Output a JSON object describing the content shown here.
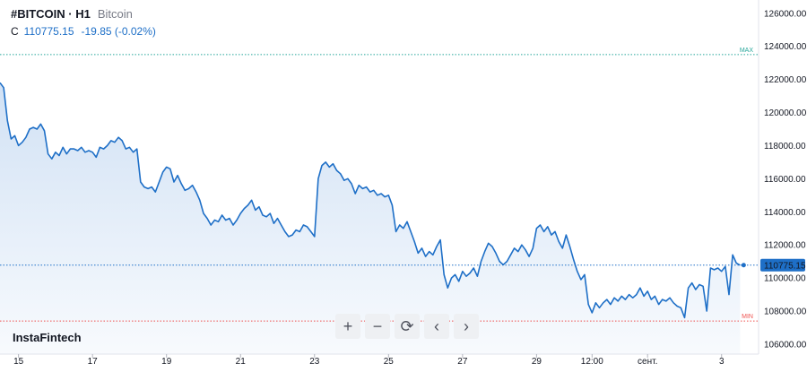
{
  "header": {
    "symbol": "#BITCOIN · H1",
    "name": "Bitcoin",
    "close_label": "C",
    "close_value": "110775.15",
    "change": "-19.85 (-0.02%)"
  },
  "logo": "InstaFintech",
  "controls": [
    {
      "name": "zoom-in-button",
      "icon": "plus-icon",
      "glyph": "+"
    },
    {
      "name": "zoom-out-button",
      "icon": "minus-icon",
      "glyph": "−"
    },
    {
      "name": "reset-button",
      "icon": "reset-icon",
      "glyph": "⟳"
    },
    {
      "name": "scroll-left-button",
      "icon": "chevron-left-icon",
      "glyph": "‹"
    },
    {
      "name": "scroll-right-button",
      "icon": "chevron-right-icon",
      "glyph": "›"
    }
  ],
  "colors": {
    "line": "#1e6fc7",
    "area_top": "#cfe0f4",
    "max_line": "#26a69a",
    "min_line": "#ef5350",
    "current_label_bg": "#1e6fc7"
  },
  "chart_data": {
    "type": "area",
    "y_ticks": [
      "126000.00",
      "124000.00",
      "122000.00",
      "120000.00",
      "118000.00",
      "116000.00",
      "114000.00",
      "112000.00",
      "110000.00",
      "108000.00",
      "106000.00"
    ],
    "ylim": [
      105400,
      126800
    ],
    "x_ticks": [
      {
        "label": "15",
        "t": 0.5
      },
      {
        "label": "17",
        "t": 2.5
      },
      {
        "label": "19",
        "t": 4.5
      },
      {
        "label": "21",
        "t": 6.5
      },
      {
        "label": "23",
        "t": 8.5
      },
      {
        "label": "25",
        "t": 10.5
      },
      {
        "label": "27",
        "t": 12.5
      },
      {
        "label": "29",
        "t": 14.5
      },
      {
        "label": "12:00",
        "t": 16.0
      },
      {
        "label": "сент.",
        "t": 17.5
      },
      {
        "label": "3",
        "t": 19.5
      }
    ],
    "xlim": [
      0,
      20.5
    ],
    "max_marker": {
      "label": "MAX",
      "value": 123500
    },
    "min_marker": {
      "label": "MIN",
      "value": 107400
    },
    "current": {
      "label": "110775.15",
      "value": 110775.15
    },
    "series": [
      {
        "values": [
          [
            0,
            121800
          ],
          [
            0.1,
            121500
          ],
          [
            0.2,
            119500
          ],
          [
            0.3,
            118400
          ],
          [
            0.4,
            118600
          ],
          [
            0.5,
            118000
          ],
          [
            0.6,
            118200
          ],
          [
            0.7,
            118500
          ],
          [
            0.8,
            119000
          ],
          [
            0.9,
            119100
          ],
          [
            1.0,
            119000
          ],
          [
            1.1,
            119300
          ],
          [
            1.2,
            118900
          ],
          [
            1.3,
            117500
          ],
          [
            1.4,
            117200
          ],
          [
            1.5,
            117600
          ],
          [
            1.6,
            117400
          ],
          [
            1.7,
            117900
          ],
          [
            1.8,
            117500
          ],
          [
            1.9,
            117800
          ],
          [
            2.0,
            117800
          ],
          [
            2.1,
            117700
          ],
          [
            2.2,
            117900
          ],
          [
            2.3,
            117600
          ],
          [
            2.4,
            117700
          ],
          [
            2.5,
            117600
          ],
          [
            2.6,
            117300
          ],
          [
            2.7,
            117900
          ],
          [
            2.8,
            117800
          ],
          [
            2.9,
            118000
          ],
          [
            3.0,
            118300
          ],
          [
            3.1,
            118200
          ],
          [
            3.2,
            118500
          ],
          [
            3.3,
            118300
          ],
          [
            3.4,
            117800
          ],
          [
            3.5,
            117900
          ],
          [
            3.6,
            117600
          ],
          [
            3.7,
            117800
          ],
          [
            3.8,
            115800
          ],
          [
            3.9,
            115500
          ],
          [
            4.0,
            115400
          ],
          [
            4.1,
            115500
          ],
          [
            4.2,
            115200
          ],
          [
            4.3,
            115800
          ],
          [
            4.4,
            116400
          ],
          [
            4.5,
            116700
          ],
          [
            4.6,
            116600
          ],
          [
            4.7,
            115800
          ],
          [
            4.8,
            116200
          ],
          [
            4.9,
            115700
          ],
          [
            5.0,
            115300
          ],
          [
            5.1,
            115400
          ],
          [
            5.2,
            115600
          ],
          [
            5.3,
            115200
          ],
          [
            5.4,
            114700
          ],
          [
            5.5,
            113900
          ],
          [
            5.6,
            113600
          ],
          [
            5.7,
            113200
          ],
          [
            5.8,
            113500
          ],
          [
            5.9,
            113400
          ],
          [
            6.0,
            113800
          ],
          [
            6.1,
            113500
          ],
          [
            6.2,
            113600
          ],
          [
            6.3,
            113200
          ],
          [
            6.4,
            113500
          ],
          [
            6.5,
            113900
          ],
          [
            6.6,
            114200
          ],
          [
            6.7,
            114400
          ],
          [
            6.8,
            114700
          ],
          [
            6.9,
            114100
          ],
          [
            7.0,
            114300
          ],
          [
            7.1,
            113800
          ],
          [
            7.2,
            113700
          ],
          [
            7.3,
            113900
          ],
          [
            7.4,
            113300
          ],
          [
            7.5,
            113600
          ],
          [
            7.6,
            113200
          ],
          [
            7.7,
            112800
          ],
          [
            7.8,
            112500
          ],
          [
            7.9,
            112600
          ],
          [
            8.0,
            112900
          ],
          [
            8.1,
            112800
          ],
          [
            8.2,
            113200
          ],
          [
            8.3,
            113100
          ],
          [
            8.4,
            112800
          ],
          [
            8.5,
            112500
          ],
          [
            8.6,
            116000
          ],
          [
            8.7,
            116800
          ],
          [
            8.8,
            117000
          ],
          [
            8.9,
            116700
          ],
          [
            9.0,
            116900
          ],
          [
            9.1,
            116500
          ],
          [
            9.2,
            116300
          ],
          [
            9.3,
            115900
          ],
          [
            9.4,
            116000
          ],
          [
            9.5,
            115700
          ],
          [
            9.6,
            115100
          ],
          [
            9.7,
            115600
          ],
          [
            9.8,
            115400
          ],
          [
            9.9,
            115500
          ],
          [
            10.0,
            115200
          ],
          [
            10.1,
            115300
          ],
          [
            10.2,
            115000
          ],
          [
            10.3,
            115100
          ],
          [
            10.4,
            114900
          ],
          [
            10.5,
            115000
          ],
          [
            10.6,
            114400
          ],
          [
            10.7,
            112800
          ],
          [
            10.8,
            113200
          ],
          [
            10.9,
            113000
          ],
          [
            11.0,
            113400
          ],
          [
            11.1,
            112800
          ],
          [
            11.2,
            112200
          ],
          [
            11.3,
            111500
          ],
          [
            11.4,
            111800
          ],
          [
            11.5,
            111300
          ],
          [
            11.6,
            111600
          ],
          [
            11.7,
            111400
          ],
          [
            11.8,
            111900
          ],
          [
            11.9,
            112300
          ],
          [
            12.0,
            110200
          ],
          [
            12.1,
            109400
          ],
          [
            12.2,
            110000
          ],
          [
            12.3,
            110200
          ],
          [
            12.4,
            109800
          ],
          [
            12.5,
            110400
          ],
          [
            12.6,
            110100
          ],
          [
            12.7,
            110300
          ],
          [
            12.8,
            110600
          ],
          [
            12.9,
            110100
          ],
          [
            13.0,
            111000
          ],
          [
            13.1,
            111600
          ],
          [
            13.2,
            112100
          ],
          [
            13.3,
            111900
          ],
          [
            13.4,
            111500
          ],
          [
            13.5,
            111000
          ],
          [
            13.6,
            110800
          ],
          [
            13.7,
            111000
          ],
          [
            13.8,
            111400
          ],
          [
            13.9,
            111800
          ],
          [
            14.0,
            111600
          ],
          [
            14.1,
            112000
          ],
          [
            14.2,
            111700
          ],
          [
            14.3,
            111300
          ],
          [
            14.4,
            111800
          ],
          [
            14.5,
            113000
          ],
          [
            14.6,
            113200
          ],
          [
            14.7,
            112800
          ],
          [
            14.8,
            113100
          ],
          [
            14.9,
            112600
          ],
          [
            15.0,
            112800
          ],
          [
            15.1,
            112200
          ],
          [
            15.2,
            111800
          ],
          [
            15.3,
            112600
          ],
          [
            15.4,
            111900
          ],
          [
            15.5,
            111100
          ],
          [
            15.6,
            110400
          ],
          [
            15.7,
            109900
          ],
          [
            15.8,
            110200
          ],
          [
            15.9,
            108400
          ],
          [
            16.0,
            107900
          ],
          [
            16.1,
            108500
          ],
          [
            16.2,
            108200
          ],
          [
            16.3,
            108500
          ],
          [
            16.4,
            108700
          ],
          [
            16.5,
            108400
          ],
          [
            16.6,
            108800
          ],
          [
            16.7,
            108600
          ],
          [
            16.8,
            108900
          ],
          [
            16.9,
            108700
          ],
          [
            17.0,
            109000
          ],
          [
            17.1,
            108800
          ],
          [
            17.2,
            109000
          ],
          [
            17.3,
            109400
          ],
          [
            17.4,
            108900
          ],
          [
            17.5,
            109200
          ],
          [
            17.6,
            108700
          ],
          [
            17.7,
            108900
          ],
          [
            17.8,
            108400
          ],
          [
            17.9,
            108700
          ],
          [
            18.0,
            108600
          ],
          [
            18.1,
            108800
          ],
          [
            18.2,
            108500
          ],
          [
            18.3,
            108300
          ],
          [
            18.4,
            108200
          ],
          [
            18.5,
            107600
          ],
          [
            18.6,
            109400
          ],
          [
            18.7,
            109700
          ],
          [
            18.8,
            109300
          ],
          [
            18.9,
            109600
          ],
          [
            19.0,
            109500
          ],
          [
            19.1,
            108000
          ],
          [
            19.2,
            110600
          ],
          [
            19.3,
            110500
          ],
          [
            19.4,
            110600
          ],
          [
            19.5,
            110400
          ],
          [
            19.6,
            110700
          ],
          [
            19.7,
            109000
          ],
          [
            19.8,
            111400
          ],
          [
            19.9,
            110900
          ],
          [
            20.0,
            110775
          ]
        ]
      }
    ]
  }
}
